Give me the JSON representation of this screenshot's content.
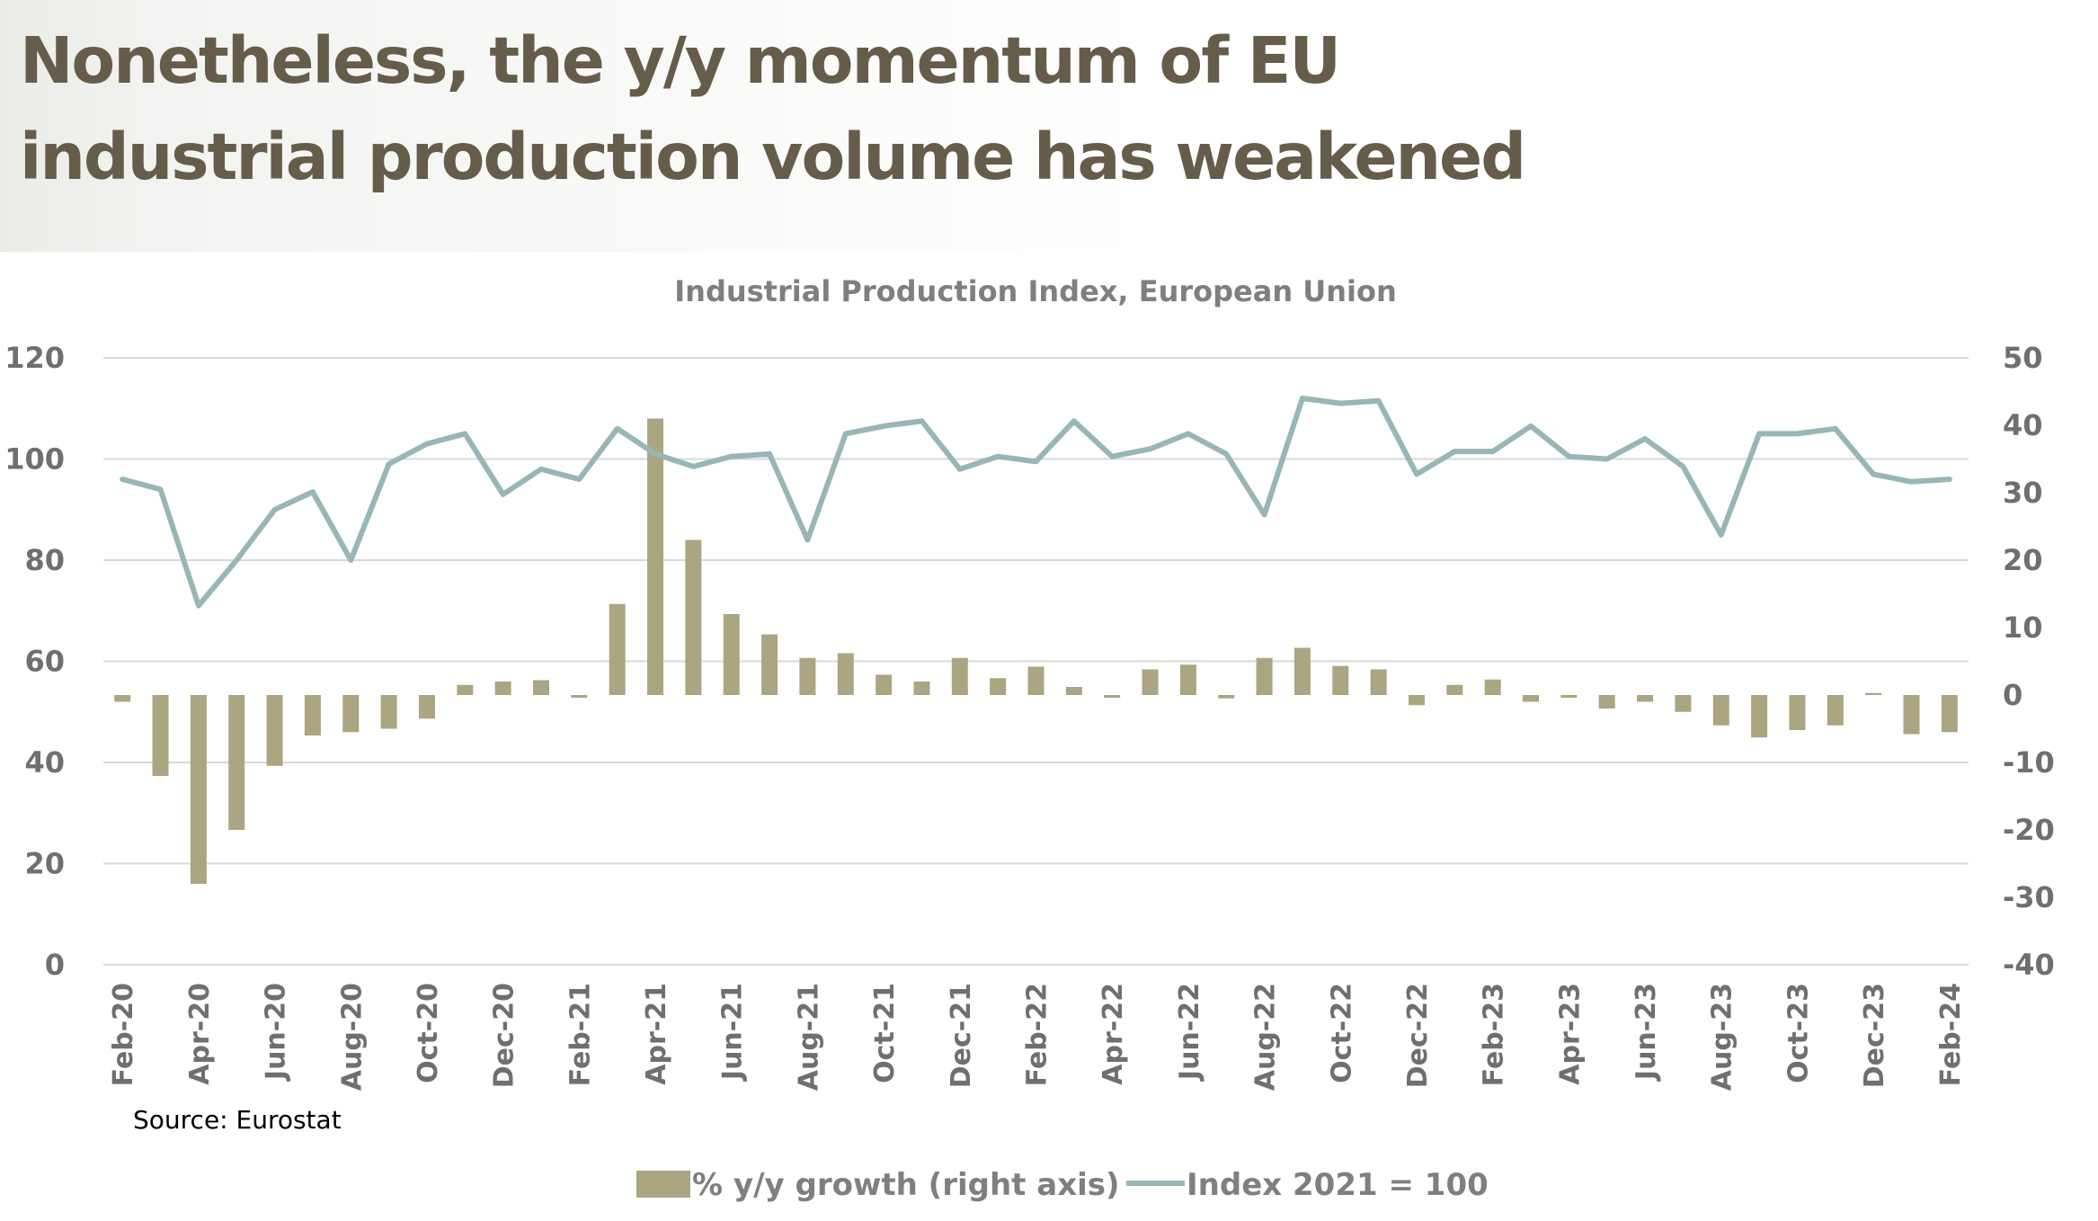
{
  "headline": {
    "line1": "Nonetheless, the y/y momentum of EU",
    "line2": "industrial production volume has weakened"
  },
  "colors": {
    "bar": "#aba582",
    "line": "#98b6b5",
    "headline": "#655c4a"
  },
  "chart_data": {
    "type": "bar",
    "title": "Industrial Production Index, European Union",
    "source": "Source: Eurostat",
    "x_tick_labels": [
      "Feb-20",
      "Apr-20",
      "Jun-20",
      "Aug-20",
      "Oct-20",
      "Dec-20",
      "Feb-21",
      "Apr-21",
      "Jun-21",
      "Aug-21",
      "Oct-21",
      "Dec-21",
      "Feb-22",
      "Apr-22",
      "Jun-22",
      "Aug-22",
      "Oct-22",
      "Dec-22",
      "Feb-23",
      "Apr-23",
      "Jun-23",
      "Aug-23",
      "Oct-23",
      "Dec-23",
      "Feb-24"
    ],
    "months": [
      "Feb-20",
      "Mar-20",
      "Apr-20",
      "May-20",
      "Jun-20",
      "Jul-20",
      "Aug-20",
      "Sep-20",
      "Oct-20",
      "Nov-20",
      "Dec-20",
      "Jan-21",
      "Feb-21",
      "Mar-21",
      "Apr-21",
      "May-21",
      "Jun-21",
      "Jul-21",
      "Aug-21",
      "Sep-21",
      "Oct-21",
      "Nov-21",
      "Dec-21",
      "Jan-22",
      "Feb-22",
      "Mar-22",
      "Apr-22",
      "May-22",
      "Jun-22",
      "Jul-22",
      "Aug-22",
      "Sep-22",
      "Oct-22",
      "Nov-22",
      "Dec-22",
      "Jan-23",
      "Feb-23",
      "Mar-23",
      "Apr-23",
      "May-23",
      "Jun-23",
      "Jul-23",
      "Aug-23",
      "Sep-23",
      "Oct-23",
      "Nov-23",
      "Dec-23",
      "Jan-24",
      "Feb-24"
    ],
    "left_axis": {
      "ylim": [
        0,
        120
      ],
      "ticks": [
        "0",
        "20",
        "40",
        "60",
        "80",
        "100",
        "120"
      ]
    },
    "right_axis": {
      "ylim": [
        -40,
        50
      ],
      "ticks": [
        "-40",
        "-30",
        "-20",
        "-10",
        "0",
        "10",
        "20",
        "30",
        "40",
        "50"
      ]
    },
    "legend_position": "bottom",
    "series": [
      {
        "name": "% y/y growth (right axis)",
        "type": "bar",
        "axis": "right",
        "values": [
          -1,
          -12,
          -28,
          -20,
          -10.5,
          -6,
          -5.5,
          -5,
          -3.5,
          1.5,
          2,
          2.2,
          -0.4,
          13.5,
          41,
          23,
          12,
          9,
          5.5,
          6.2,
          3,
          2,
          5.5,
          2.5,
          4.2,
          1.2,
          -0.4,
          3.8,
          4.5,
          -0.5,
          5.5,
          7,
          4.3,
          3.8,
          -1.5,
          1.5,
          2.3,
          -1,
          -0.4,
          -2,
          -1,
          -2.5,
          -4.5,
          -6.3,
          -5.2,
          -4.5,
          0.3,
          -5.8,
          -5.5
        ]
      },
      {
        "name": "Index 2021 = 100",
        "type": "line",
        "axis": "left",
        "values": [
          96,
          94,
          71,
          80,
          90,
          93.5,
          80,
          99,
          103,
          105,
          93,
          98,
          96,
          106,
          101,
          98.5,
          100.5,
          101,
          84,
          105,
          106.5,
          107.5,
          98,
          100.5,
          99.5,
          107.5,
          100.5,
          102,
          105,
          101,
          89,
          112,
          111,
          111.5,
          97,
          101.5,
          101.5,
          106.5,
          100.5,
          100,
          104,
          98.5,
          85,
          105,
          105,
          106,
          97,
          95.5,
          96
        ]
      }
    ]
  }
}
